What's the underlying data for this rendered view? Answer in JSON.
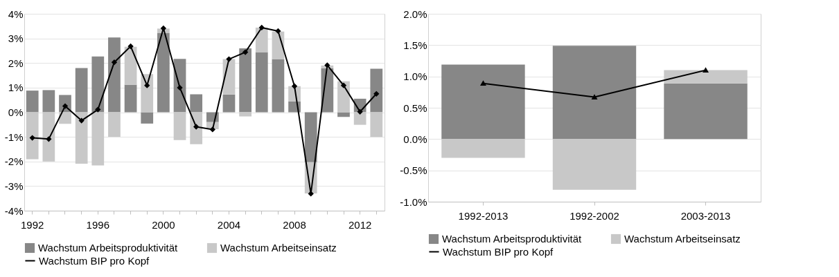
{
  "chart_data": [
    {
      "type": "bar",
      "stacked": true,
      "grid": "y",
      "legend": "bottom",
      "marker": "diamond",
      "line_style": "solid",
      "categories": [
        "1992",
        null,
        null,
        null,
        "1996",
        null,
        null,
        null,
        "2000",
        null,
        null,
        null,
        "2004",
        null,
        null,
        null,
        "2008",
        null,
        null,
        null,
        "2012",
        null
      ],
      "ylim": [
        -4,
        4
      ],
      "yticks": [
        {
          "value": -4,
          "label": "-4%"
        },
        {
          "value": -3,
          "label": "-3%"
        },
        {
          "value": -2,
          "label": "-2%"
        },
        {
          "value": -1,
          "label": "-1%"
        },
        {
          "value": 0,
          "label": "0%"
        },
        {
          "value": 1,
          "label": "1%"
        },
        {
          "value": 2,
          "label": "2%"
        },
        {
          "value": 3,
          "label": "3%"
        },
        {
          "value": 4,
          "label": "4%"
        }
      ],
      "series": [
        {
          "name": "Wachstum Arbeitsproduktivität",
          "color": "#878787",
          "values": [
            0.88,
            0.9,
            0.7,
            1.8,
            2.27,
            3.04,
            1.12,
            -0.46,
            3.23,
            2.17,
            0.73,
            -0.4,
            0.72,
            2.6,
            2.44,
            2.16,
            0.44,
            -2.03,
            1.79,
            -0.19,
            0.55,
            1.77
          ]
        },
        {
          "name": "Wachstum Arbeitseinsatz",
          "color": "#c8c8c8",
          "values": [
            -1.91,
            -2.0,
            -0.47,
            -2.09,
            -2.16,
            -1.0,
            1.54,
            1.55,
            0.17,
            -1.13,
            -1.3,
            -0.29,
            1.44,
            -0.17,
            1.0,
            1.12,
            0.62,
            -1.27,
            0.11,
            1.26,
            -0.51,
            -1.0
          ]
        },
        {
          "name": "Wachstum BIP pro Kopf",
          "type": "line",
          "color": "#000000",
          "values": [
            -1.04,
            -1.09,
            0.25,
            -0.34,
            0.11,
            2.03,
            2.68,
            1.09,
            3.41,
            1.0,
            -0.59,
            -0.7,
            2.16,
            2.44,
            3.44,
            3.3,
            1.06,
            -3.31,
            1.91,
            1.09,
            0.02,
            0.75
          ]
        }
      ]
    },
    {
      "type": "bar",
      "stacked": true,
      "grid": "y",
      "legend": "bottom",
      "marker": "triangle",
      "line_style": "solid",
      "categories": [
        "1992-2013",
        "1992-2002",
        "2003-2013"
      ],
      "ylim": [
        -1,
        2
      ],
      "yticks": [
        {
          "value": -1,
          "label": "-1.0%"
        },
        {
          "value": -0.5,
          "label": "-0.5%"
        },
        {
          "value": 0,
          "label": "0.0%"
        },
        {
          "value": 0.5,
          "label": "0.5%"
        },
        {
          "value": 1,
          "label": "1.0%"
        },
        {
          "value": 1.5,
          "label": "1.5%"
        },
        {
          "value": 2,
          "label": "2.0%"
        }
      ],
      "series": [
        {
          "name": "Wachstum Arbeitsproduktivität",
          "color": "#878787",
          "values": [
            1.19,
            1.49,
            0.89
          ]
        },
        {
          "name": "Wachstum Arbeitseinsatz",
          "color": "#c8c8c8",
          "values": [
            -0.3,
            -0.81,
            0.21
          ]
        },
        {
          "name": "Wachstum BIP pro Kopf",
          "type": "line",
          "color": "#000000",
          "values": [
            0.89,
            0.67,
            1.1
          ]
        }
      ]
    }
  ]
}
